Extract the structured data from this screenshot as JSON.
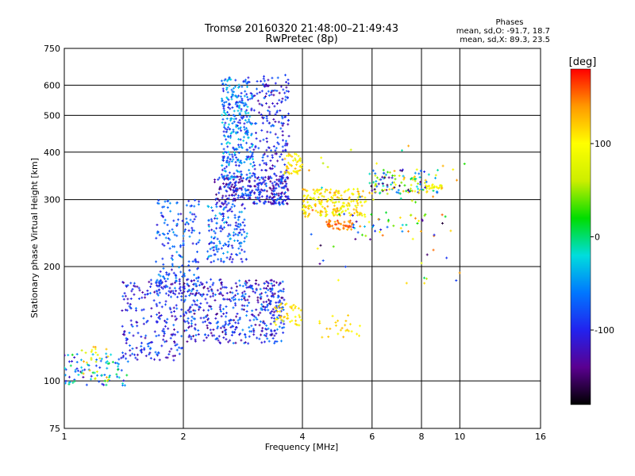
{
  "chart_data": {
    "type": "scatter",
    "title": "Tromsø 20160320 21:48:00–21:49:43",
    "subtitle": "RwPretec (8p)",
    "xlabel": "Frequency [MHz]",
    "ylabel": "Stationary phase Virtual Height [km]",
    "x_scale": "log2",
    "y_scale": "log",
    "xlim": [
      1,
      16
    ],
    "ylim": [
      75,
      750
    ],
    "x_ticks": [
      {
        "value": 1,
        "label": "1"
      },
      {
        "value": 2,
        "label": "2"
      },
      {
        "value": 4,
        "label": "4"
      },
      {
        "value": 6,
        "label": "6"
      },
      {
        "value": 8,
        "label": "8"
      },
      {
        "value": 10,
        "label": "10"
      },
      {
        "value": 16,
        "label": "16"
      }
    ],
    "y_ticks": [
      {
        "value": 75,
        "label": "75"
      },
      {
        "value": 100,
        "label": "100"
      },
      {
        "value": 200,
        "label": "200"
      },
      {
        "value": 300,
        "label": "300"
      },
      {
        "value": 400,
        "label": "400"
      },
      {
        "value": 500,
        "label": "500"
      },
      {
        "value": 600,
        "label": "600"
      },
      {
        "value": 750,
        "label": "750"
      }
    ],
    "grid": true,
    "colorbar": {
      "label": "[deg]",
      "range": [
        -180,
        180
      ],
      "ticks": [
        {
          "value": 100,
          "label": "100"
        },
        {
          "value": 0,
          "label": "0"
        },
        {
          "value": -100,
          "label": "-100"
        }
      ],
      "stops": [
        "#000000",
        "#5a0090",
        "#2222ee",
        "#0077ff",
        "#00dddd",
        "#00dd00",
        "#ccee00",
        "#ffff00",
        "#ff9900",
        "#ff0000"
      ]
    },
    "legend": {
      "title": "Phases",
      "lines": [
        "mean, sd,O:  -91.7, 18.7",
        "mean, sd,X:   89.3, 23.5"
      ]
    },
    "clusters": [
      {
        "x": [
          1.0,
          1.45
        ],
        "y": [
          97,
          118
        ],
        "n": 90,
        "phase": [
          -130,
          20
        ]
      },
      {
        "x": [
          1.1,
          1.3
        ],
        "y": [
          100,
          125
        ],
        "n": 25,
        "phase": [
          60,
          140
        ]
      },
      {
        "x": [
          1.4,
          2.0
        ],
        "y": [
          112,
          185
        ],
        "n": 220,
        "phase": [
          -140,
          -60
        ]
      },
      {
        "x": [
          2.0,
          3.6
        ],
        "y": [
          125,
          185
        ],
        "n": 480,
        "phase": [
          -150,
          -50
        ]
      },
      {
        "x": [
          1.7,
          2.2
        ],
        "y": [
          165,
          300
        ],
        "n": 180,
        "phase": [
          -120,
          -40
        ]
      },
      {
        "x": [
          2.3,
          2.9
        ],
        "y": [
          205,
          290
        ],
        "n": 160,
        "phase": [
          -120,
          -30
        ]
      },
      {
        "x": [
          2.4,
          3.7
        ],
        "y": [
          290,
          345
        ],
        "n": 300,
        "phase": [
          -150,
          -60
        ]
      },
      {
        "x": [
          2.5,
          3.0
        ],
        "y": [
          340,
          630
        ],
        "n": 320,
        "phase": [
          -110,
          -20
        ]
      },
      {
        "x": [
          3.0,
          3.7
        ],
        "y": [
          330,
          640
        ],
        "n": 200,
        "phase": [
          -140,
          -60
        ]
      },
      {
        "x": [
          3.4,
          4.0
        ],
        "y": [
          140,
          160
        ],
        "n": 45,
        "phase": [
          90,
          130
        ]
      },
      {
        "x": [
          3.6,
          4.0
        ],
        "y": [
          350,
          400
        ],
        "n": 50,
        "phase": [
          80,
          130
        ]
      },
      {
        "x": [
          4.0,
          5.8
        ],
        "y": [
          270,
          320
        ],
        "n": 200,
        "phase": [
          70,
          140
        ]
      },
      {
        "x": [
          4.6,
          5.4
        ],
        "y": [
          250,
          265
        ],
        "n": 45,
        "phase": [
          130,
          170
        ]
      },
      {
        "x": [
          5.9,
          8.8
        ],
        "y": [
          310,
          360
        ],
        "n": 120,
        "phase": [
          -170,
          140
        ]
      },
      {
        "x": [
          8.2,
          9.0
        ],
        "y": [
          320,
          330
        ],
        "n": 25,
        "phase": [
          70,
          110
        ]
      },
      {
        "x": [
          5.3,
          8.5
        ],
        "y": [
          240,
          275
        ],
        "n": 40,
        "phase": [
          -140,
          170
        ]
      },
      {
        "x": [
          4.4,
          5.6
        ],
        "y": [
          130,
          150
        ],
        "n": 25,
        "phase": [
          90,
          130
        ]
      },
      {
        "x": [
          4.0,
          10.5
        ],
        "y": [
          180,
          420
        ],
        "n": 60,
        "phase": [
          -170,
          170
        ]
      }
    ]
  }
}
